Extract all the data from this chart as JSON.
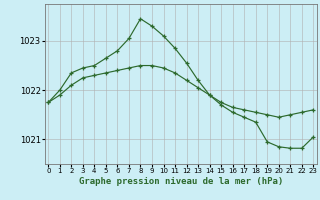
{
  "title": "Graphe pression niveau de la mer (hPa)",
  "line1_x": [
    0,
    1,
    2,
    3,
    4,
    5,
    6,
    7,
    8,
    9,
    10,
    11,
    12,
    13,
    14,
    15,
    16,
    17,
    18,
    19,
    20,
    21,
    22,
    23
  ],
  "line1_y": [
    1021.75,
    1021.9,
    1022.1,
    1022.25,
    1022.3,
    1022.35,
    1022.4,
    1022.45,
    1022.5,
    1022.5,
    1022.45,
    1022.35,
    1022.2,
    1022.05,
    1021.9,
    1021.75,
    1021.65,
    1021.6,
    1021.55,
    1021.5,
    1021.45,
    1021.5,
    1021.55,
    1021.6
  ],
  "line2_x": [
    0,
    1,
    2,
    3,
    4,
    5,
    6,
    7,
    8,
    9,
    10,
    11,
    12,
    13,
    14,
    15,
    16,
    17,
    18,
    19,
    20,
    21,
    22,
    23
  ],
  "line2_y": [
    1021.75,
    1022.0,
    1022.35,
    1022.45,
    1022.5,
    1022.65,
    1022.8,
    1023.05,
    1023.45,
    1023.3,
    1023.1,
    1022.85,
    1022.55,
    1022.2,
    1021.9,
    1021.7,
    1021.55,
    1021.45,
    1021.35,
    1020.95,
    1020.85,
    1020.82,
    1020.82,
    1021.05
  ],
  "line_color": "#2d6a2d",
  "bg_color": "#cceef5",
  "grid_color": "#b0b0b0",
  "yticks": [
    1021,
    1022,
    1023
  ],
  "xtick_labels": [
    "0",
    "1",
    "2",
    "3",
    "4",
    "5",
    "6",
    "7",
    "8",
    "9",
    "10",
    "11",
    "12",
    "13",
    "14",
    "15",
    "16",
    "17",
    "18",
    "19",
    "20",
    "21",
    "22",
    "23"
  ],
  "xticks": [
    0,
    1,
    2,
    3,
    4,
    5,
    6,
    7,
    8,
    9,
    10,
    11,
    12,
    13,
    14,
    15,
    16,
    17,
    18,
    19,
    20,
    21,
    22,
    23
  ],
  "xlim": [
    -0.3,
    23.3
  ],
  "ylim": [
    1020.5,
    1023.75
  ],
  "xlabel_fontsize": 6.5,
  "ytick_fontsize": 6,
  "xtick_fontsize": 5.0,
  "marker": "+",
  "marker_size": 3.5,
  "marker_lw": 0.9,
  "line_width": 0.85
}
